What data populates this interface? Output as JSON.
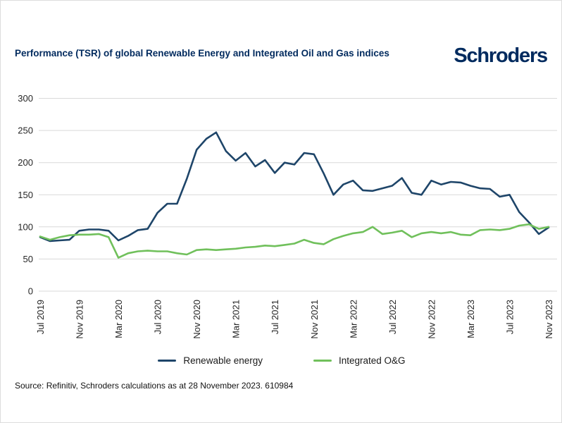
{
  "header": {
    "title": "Performance (TSR) of global Renewable Energy and Integrated Oil and Gas indices",
    "logo_text": "Schroders"
  },
  "colors": {
    "title_navy": "#002a5e",
    "grid": "#d9d9d9",
    "axis_text": "#262626",
    "renewable_blue": "#1e4569",
    "oil_gas_green": "#70c05b"
  },
  "chart_data": {
    "type": "line",
    "title": "Performance (TSR) of global Renewable Energy and Integrated Oil and Gas indices",
    "x": [
      "Jul 2019",
      "Aug 2019",
      "Sep 2019",
      "Oct 2019",
      "Nov 2019",
      "Dec 2019",
      "Jan 2020",
      "Feb 2020",
      "Mar 2020",
      "Apr 2020",
      "May 2020",
      "Jun 2020",
      "Jul 2020",
      "Aug 2020",
      "Sep 2020",
      "Oct 2020",
      "Nov 2020",
      "Dec 2020",
      "Jan 2021",
      "Feb 2021",
      "Mar 2021",
      "Apr 2021",
      "May 2021",
      "Jun 2021",
      "Jul 2021",
      "Aug 2021",
      "Sep 2021",
      "Oct 2021",
      "Nov 2021",
      "Dec 2021",
      "Jan 2022",
      "Feb 2022",
      "Mar 2022",
      "Apr 2022",
      "May 2022",
      "Jun 2022",
      "Jul 2022",
      "Aug 2022",
      "Sep 2022",
      "Oct 2022",
      "Nov 2022",
      "Dec 2022",
      "Jan 2023",
      "Feb 2023",
      "Mar 2023",
      "Apr 2023",
      "May 2023",
      "Jun 2023",
      "Jul 2023",
      "Aug 2023",
      "Sep 2023",
      "Oct 2023",
      "Nov 2023"
    ],
    "x_tick_labels": [
      "Jul 2019",
      "Nov 2019",
      "Mar 2020",
      "Jul 2020",
      "Nov 2020",
      "Mar 2021",
      "Jul 2021",
      "Nov 2021",
      "Mar 2022",
      "Jul 2022",
      "Nov 2022",
      "Mar 2023",
      "Jul 2023",
      "Nov 2023"
    ],
    "yticks": [
      0,
      50,
      100,
      150,
      200,
      250,
      300
    ],
    "ylim": [
      0,
      300
    ],
    "grid": "horizontal-only",
    "legend_position": "bottom",
    "series": [
      {
        "name": "Renewable energy",
        "color": "#1e4569",
        "values": [
          84,
          78,
          79,
          80,
          94,
          96,
          96,
          94,
          79,
          86,
          95,
          97,
          122,
          136,
          136,
          175,
          220,
          237,
          247,
          218,
          203,
          215,
          194,
          204,
          184,
          200,
          197,
          215,
          213,
          183,
          150,
          166,
          172,
          157,
          156,
          160,
          164,
          176,
          153,
          150,
          172,
          166,
          170,
          169,
          164,
          160,
          159,
          147,
          150,
          123,
          107,
          89,
          99
        ]
      },
      {
        "name": "Integrated O&G",
        "color": "#70c05b",
        "values": [
          85,
          80,
          84,
          87,
          88,
          88,
          89,
          84,
          52,
          59,
          62,
          63,
          62,
          62,
          59,
          57,
          64,
          65,
          64,
          65,
          66,
          68,
          69,
          71,
          70,
          72,
          74,
          80,
          75,
          73,
          81,
          86,
          90,
          92,
          100,
          89,
          91,
          94,
          84,
          90,
          92,
          90,
          92,
          88,
          87,
          95,
          96,
          95,
          97,
          102,
          104,
          97,
          100
        ]
      }
    ]
  },
  "legend": {
    "items": [
      {
        "label": "Renewable energy",
        "color": "#1e4569"
      },
      {
        "label": "Integrated O&G",
        "color": "#70c05b"
      }
    ]
  },
  "footer": {
    "source": "Source: Refinitiv, Schroders calculations as at 28 November 2023. 610984"
  }
}
